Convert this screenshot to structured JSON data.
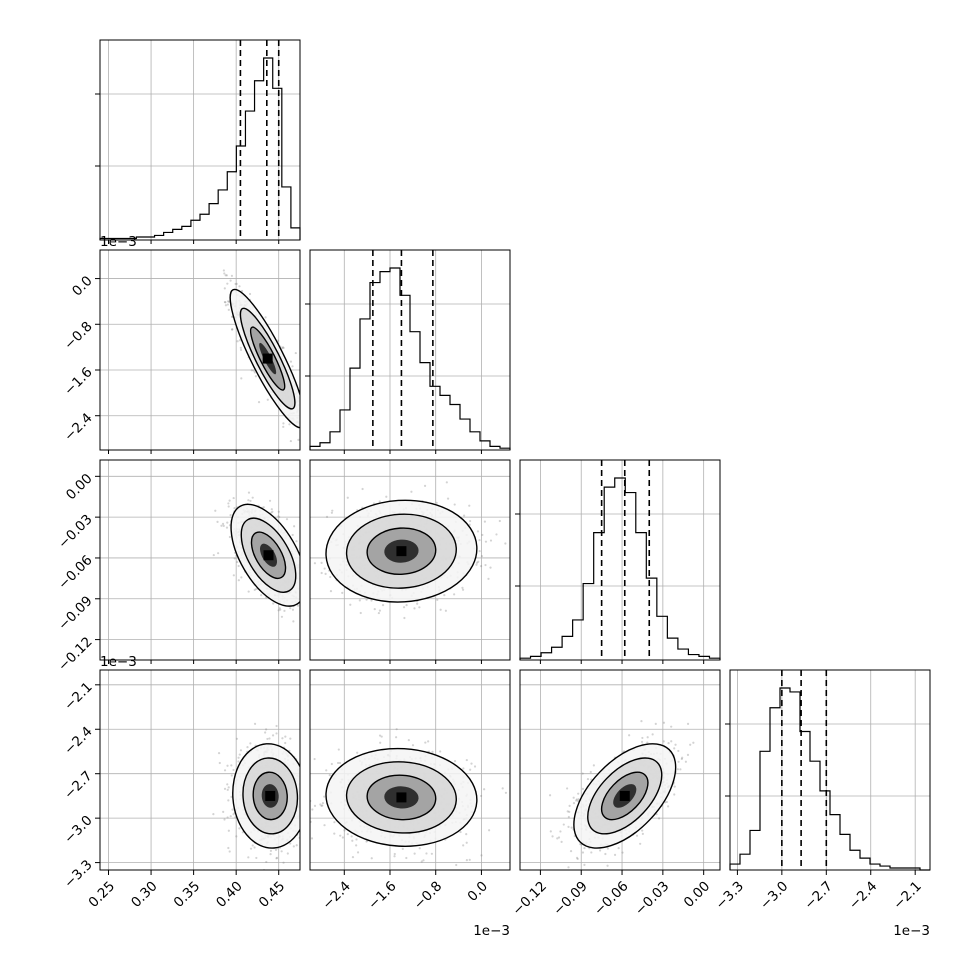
{
  "chart_data": {
    "type": "corner",
    "colors": {
      "frame": "#000000",
      "grid": "#b0b0b0",
      "points": "#808080",
      "contour": "#000000"
    },
    "grid": true,
    "quantile_lines": "dashed",
    "parameters": [
      {
        "range": [
          0.24,
          0.475
        ],
        "ticks": [
          0.25,
          0.3,
          0.35,
          0.4,
          0.45
        ],
        "tick_labels": [
          "0.25",
          "0.30",
          "0.35",
          "0.40",
          "0.45"
        ],
        "offset": "",
        "quantiles": [
          0.405,
          0.436,
          0.45
        ]
      },
      {
        "range": [
          -3.0,
          0.5
        ],
        "ticks": [
          -2.4,
          -1.6,
          -0.8,
          0.0
        ],
        "tick_labels": [
          "−2.4",
          "−1.6",
          "−0.8",
          "0.0"
        ],
        "offset": "1e−3",
        "quantiles": [
          -1.9,
          -1.4,
          -0.85
        ]
      },
      {
        "range": [
          -0.135,
          0.012
        ],
        "ticks": [
          -0.12,
          -0.09,
          -0.06,
          -0.03,
          0.0
        ],
        "tick_labels": [
          "−0.12",
          "−0.09",
          "−0.06",
          "−0.03",
          "0.00"
        ],
        "offset": "",
        "quantiles": [
          -0.075,
          -0.058,
          -0.04
        ]
      },
      {
        "range": [
          -3.35,
          -2.0
        ],
        "ticks": [
          -3.3,
          -3.0,
          -2.7,
          -2.4,
          -2.1
        ],
        "tick_labels": [
          "−3.3",
          "−3.0",
          "−2.7",
          "−2.4",
          "−2.1"
        ],
        "offset": "1e−3",
        "quantiles": [
          -3.0,
          -2.87,
          -2.7
        ]
      }
    ],
    "marginals": [
      {
        "counts": [
          1,
          1,
          1,
          1,
          2,
          2,
          3,
          5,
          7,
          9,
          13,
          17,
          24,
          33,
          45,
          62,
          85,
          105,
          120,
          100,
          35,
          8
        ]
      },
      {
        "counts": [
          2,
          4,
          10,
          22,
          45,
          72,
          92,
          98,
          100,
          85,
          65,
          48,
          35,
          30,
          25,
          17,
          10,
          5,
          2,
          1
        ]
      },
      {
        "counts": [
          1,
          2,
          4,
          7,
          13,
          22,
          42,
          70,
          95,
          100,
          92,
          70,
          45,
          24,
          12,
          6,
          3,
          2,
          1
        ]
      },
      {
        "counts": [
          3,
          8,
          20,
          60,
          82,
          92,
          90,
          70,
          55,
          40,
          28,
          18,
          10,
          6,
          3,
          2,
          1,
          1,
          1,
          0
        ]
      }
    ],
    "joints": [
      {
        "x_param": 0,
        "y_param": 1,
        "mean": [
          0.437,
          -1.4
        ],
        "std": [
          0.02,
          0.55
        ],
        "corr": -0.88
      },
      {
        "x_param": 0,
        "y_param": 2,
        "mean": [
          0.438,
          -0.058
        ],
        "std": [
          0.02,
          0.017
        ],
        "corr": -0.55
      },
      {
        "x_param": 1,
        "y_param": 2,
        "mean": [
          -1.4,
          -0.055
        ],
        "std": [
          0.6,
          0.017
        ],
        "corr": 0.05
      },
      {
        "x_param": 0,
        "y_param": 3,
        "mean": [
          0.44,
          -2.85
        ],
        "std": [
          0.02,
          0.16
        ],
        "corr": -0.05
      },
      {
        "x_param": 1,
        "y_param": 3,
        "mean": [
          -1.4,
          -2.86
        ],
        "std": [
          0.6,
          0.15
        ],
        "corr": -0.05
      },
      {
        "x_param": 2,
        "y_param": 3,
        "mean": [
          -0.058,
          -2.85
        ],
        "std": [
          0.017,
          0.16
        ],
        "corr": 0.55
      }
    ]
  }
}
